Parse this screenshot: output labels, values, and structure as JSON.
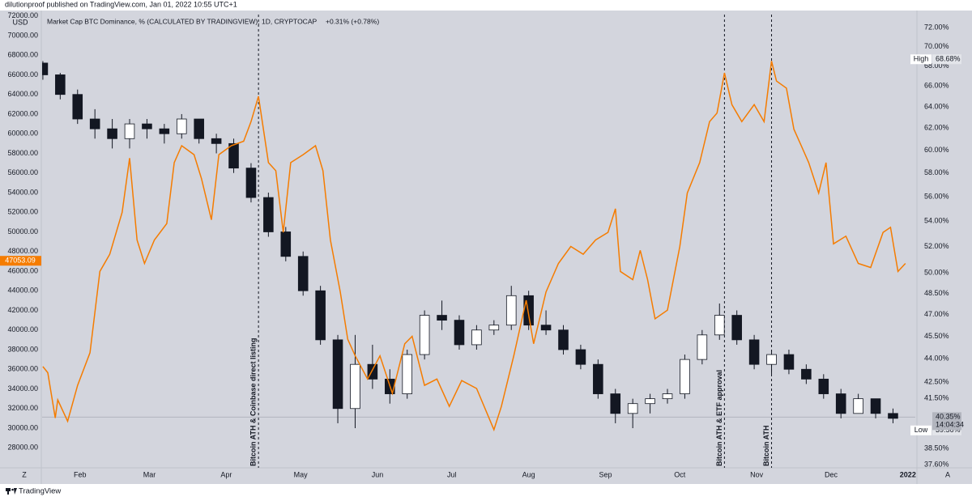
{
  "chart_data": {
    "type": "candlestick",
    "source": "dilutionproof published on TradingView.com, Jan 01, 2022 10:55 UTC+1",
    "title": "Market Cap BTC Dominance, % (CALCULATED BY TRADINGVIEW), 1D, CRYPTOCAP",
    "change": "+0.31% (+0.78%)",
    "left_axis_label": "USD",
    "xlim": [
      16.7,
      369
    ],
    "xticks": [
      {
        "value": 32,
        "label": "Feb"
      },
      {
        "value": 60,
        "label": "Mar"
      },
      {
        "value": 91,
        "label": "Apr"
      },
      {
        "value": 121,
        "label": "May"
      },
      {
        "value": 152,
        "label": "Jun"
      },
      {
        "value": 182,
        "label": "Jul"
      },
      {
        "value": 213,
        "label": "Aug"
      },
      {
        "value": 244,
        "label": "Sep"
      },
      {
        "value": 274,
        "label": "Oct"
      },
      {
        "value": 305,
        "label": "Nov"
      },
      {
        "value": 335,
        "label": "Dec"
      },
      {
        "value": 366,
        "label": "2022"
      }
    ],
    "ylim": [
      25960,
      72140
    ],
    "yticks": [
      {
        "value": 28000,
        "label": "28000.00"
      },
      {
        "value": 30000,
        "label": "30000.00"
      },
      {
        "value": 32000,
        "label": "32000.00"
      },
      {
        "value": 34000,
        "label": "34000.00"
      },
      {
        "value": 36000,
        "label": "36000.00"
      },
      {
        "value": 38000,
        "label": "38000.00"
      },
      {
        "value": 40000,
        "label": "40000.00"
      },
      {
        "value": 42000,
        "label": "42000.00"
      },
      {
        "value": 44000,
        "label": "44000.00"
      },
      {
        "value": 46000,
        "label": "46000.00"
      },
      {
        "value": 48000,
        "label": "48000.00"
      },
      {
        "value": 50000,
        "label": "50000.00"
      },
      {
        "value": 52000,
        "label": "52000.00"
      },
      {
        "value": 54000,
        "label": "54000.00"
      },
      {
        "value": 56000,
        "label": "56000.00"
      },
      {
        "value": 58000,
        "label": "58000.00"
      },
      {
        "value": 60000,
        "label": "60000.00"
      },
      {
        "value": 62000,
        "label": "62000.00"
      },
      {
        "value": 64000,
        "label": "64000.00"
      },
      {
        "value": 66000,
        "label": "66000.00"
      },
      {
        "value": 68000,
        "label": "68000.00"
      },
      {
        "value": 70000,
        "label": "70000.00"
      },
      {
        "value": 72000,
        "label": "72000.00"
      }
    ],
    "y2lim": [
      37.42,
      73.4
    ],
    "y2log": true,
    "y2ticks": [
      {
        "value": 72,
        "label": "72.00%"
      },
      {
        "value": 70,
        "label": "70.00%"
      },
      {
        "value": 68,
        "label": "68.00%"
      },
      {
        "value": 66,
        "label": "66.00%"
      },
      {
        "value": 64,
        "label": "64.00%"
      },
      {
        "value": 62,
        "label": "62.00%"
      },
      {
        "value": 60,
        "label": "60.00%"
      },
      {
        "value": 58,
        "label": "58.00%"
      },
      {
        "value": 56,
        "label": "56.00%"
      },
      {
        "value": 54,
        "label": "54.00%"
      },
      {
        "value": 52,
        "label": "52.00%"
      },
      {
        "value": 50,
        "label": "50.00%"
      },
      {
        "value": 48.5,
        "label": "48.50%"
      },
      {
        "value": 47,
        "label": "47.00%"
      },
      {
        "value": 45.5,
        "label": "45.50%"
      },
      {
        "value": 44,
        "label": "44.00%"
      },
      {
        "value": 42.5,
        "label": "42.50%"
      },
      {
        "value": 41.5,
        "label": "41.50%"
      },
      {
        "value": 38.5,
        "label": "38.50%"
      },
      {
        "value": 37.6,
        "label": "37.60%"
      }
    ],
    "candles": {
      "up_color": "#ffffff",
      "down_color": "#131722",
      "edge_color": "#131722",
      "x": [
        17,
        24,
        31,
        38,
        45,
        52,
        59,
        66,
        73,
        80,
        87,
        94,
        101,
        108,
        115,
        122,
        129,
        136,
        143,
        150,
        157,
        164,
        171,
        178,
        185,
        192,
        199,
        206,
        213,
        220,
        227,
        234,
        241,
        248,
        255,
        262,
        269,
        276,
        283,
        290,
        297,
        304,
        311,
        318,
        325,
        332,
        339,
        346,
        353,
        360
      ],
      "open": [
        67200,
        66000,
        64000,
        61500,
        60500,
        59500,
        61000,
        60500,
        60000,
        61500,
        59500,
        59000,
        56500,
        53500,
        50000,
        47500,
        44000,
        39000,
        32000,
        36500,
        35000,
        33500,
        37500,
        41500,
        41000,
        38500,
        40000,
        40500,
        43500,
        40500,
        40000,
        38000,
        36500,
        33500,
        31500,
        32500,
        33000,
        33500,
        37000,
        39500,
        41500,
        39000,
        36500,
        37500,
        36000,
        35000,
        33500,
        31500,
        33000,
        31500
      ],
      "high": [
        67400,
        66200,
        64500,
        62500,
        61500,
        61500,
        61500,
        61000,
        62000,
        61500,
        60000,
        59500,
        57000,
        54000,
        50500,
        48000,
        44500,
        39500,
        39500,
        38500,
        36000,
        38000,
        42000,
        43000,
        41500,
        40500,
        41000,
        44500,
        44000,
        42000,
        40500,
        38500,
        37000,
        34000,
        33000,
        33500,
        34000,
        37500,
        40000,
        42700,
        42000,
        39500,
        38000,
        38000,
        36500,
        35500,
        34000,
        33500,
        33000,
        32000
      ],
      "low": [
        65500,
        63500,
        61000,
        59500,
        58500,
        58500,
        59500,
        59000,
        59500,
        59000,
        58000,
        56000,
        53000,
        49500,
        47000,
        43500,
        38500,
        30500,
        30000,
        34000,
        32500,
        33000,
        37000,
        40000,
        38000,
        38000,
        39500,
        40000,
        40000,
        39500,
        37500,
        36000,
        33000,
        30500,
        30000,
        31500,
        32500,
        33000,
        36500,
        39000,
        38500,
        36000,
        35500,
        35500,
        34500,
        33000,
        31000,
        31500,
        31000,
        30500
      ],
      "close": [
        66000,
        64000,
        61500,
        60500,
        59500,
        61000,
        60500,
        60000,
        61500,
        59500,
        59000,
        56500,
        53500,
        50000,
        47500,
        44000,
        39000,
        32000,
        36500,
        35000,
        33500,
        37500,
        41500,
        41000,
        38500,
        40000,
        40500,
        43500,
        40500,
        40000,
        38000,
        36500,
        33500,
        31500,
        32500,
        33000,
        33500,
        37000,
        39500,
        41500,
        39000,
        36500,
        37500,
        36000,
        35000,
        33500,
        31500,
        33000,
        31500,
        31000
      ]
    },
    "series": [
      {
        "axis": "y2",
        "color": "#f57c00",
        "x": [
          17,
          19,
          22,
          23,
          27,
          31,
          36,
          40,
          44,
          49,
          52,
          55,
          58,
          62,
          67,
          70,
          73,
          78,
          81,
          85,
          88,
          93,
          98,
          101,
          104,
          108,
          111,
          114,
          117,
          122,
          127,
          130,
          133,
          137,
          140,
          143,
          148,
          153,
          158,
          163,
          166,
          171,
          176,
          181,
          186,
          192,
          199,
          202,
          207,
          212,
          215,
          220,
          225,
          230,
          235,
          240,
          245,
          248,
          250,
          255,
          258,
          261,
          264,
          269,
          274,
          277,
          282,
          286,
          289,
          292,
          295,
          299,
          304,
          308,
          311,
          313,
          317,
          320,
          323,
          326,
          330,
          333,
          336,
          341,
          346,
          351,
          356,
          359,
          362,
          365
        ],
        "values": [
          43.5,
          43.1,
          40.3,
          41.4,
          40.1,
          42.3,
          44.4,
          50.1,
          51.4,
          54.7,
          59.3,
          52.5,
          50.7,
          52.5,
          53.8,
          58.9,
          60.4,
          59.6,
          57.5,
          54.1,
          59.6,
          60.4,
          60.8,
          62.6,
          65.0,
          58.9,
          58.2,
          53.1,
          58.9,
          59.6,
          60.4,
          58.2,
          52.5,
          48.6,
          45.3,
          44.2,
          42.7,
          44.2,
          41.8,
          45.0,
          45.5,
          42.3,
          42.7,
          41.0,
          42.6,
          42.1,
          39.6,
          41.0,
          44.2,
          48.0,
          45.0,
          48.6,
          50.7,
          52.0,
          51.4,
          52.5,
          53.1,
          55.0,
          50.1,
          49.5,
          51.7,
          49.5,
          46.7,
          47.3,
          52.0,
          56.3,
          58.9,
          62.6,
          63.4,
          67.3,
          64.2,
          62.6,
          64.2,
          62.6,
          68.5,
          66.5,
          65.8,
          61.9,
          60.4,
          58.9,
          56.3,
          58.9,
          52.2,
          52.8,
          50.7,
          50.4,
          53.1,
          53.5,
          50.1,
          50.7
        ]
      }
    ],
    "price_marker": {
      "value": 47053.09,
      "color": "#f57c00"
    },
    "last_value": {
      "value": 40.35,
      "label": "40.35%",
      "countdown": "14:04:34"
    },
    "high_marker": {
      "text": "High",
      "value": 68.68,
      "label": "68.68%"
    },
    "low_marker": {
      "text": "Low",
      "value": 39.56,
      "label": "39.56%"
    },
    "annotations": [
      {
        "x": 104,
        "text": "Bitcoin ATH & Coinbase direct listing"
      },
      {
        "x": 292,
        "text": "Bitcoin ATH & ETF approval"
      },
      {
        "x": 311,
        "text": "Bitcoin ATH"
      }
    ],
    "ui": {
      "left_button": "Z",
      "right_button": "A",
      "brand": "TradingView"
    }
  }
}
